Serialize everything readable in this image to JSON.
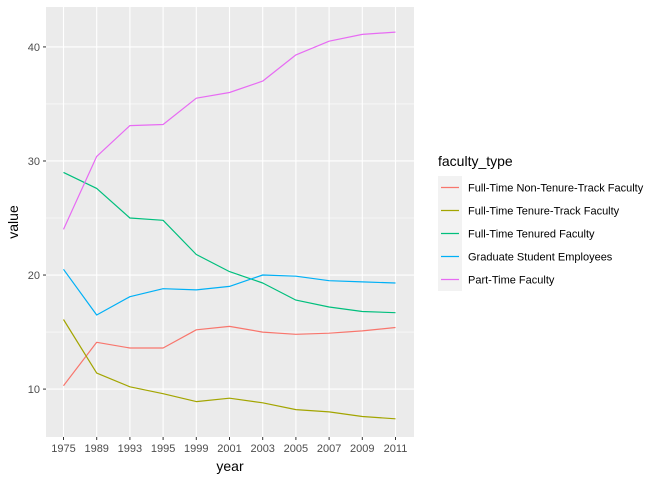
{
  "chart_data": {
    "type": "line",
    "xlabel": "year",
    "ylabel": "value",
    "x_ticks": [
      1975,
      1989,
      1993,
      1995,
      1999,
      2001,
      2003,
      2005,
      2007,
      2009,
      2011
    ],
    "y_ticks": [
      10,
      20,
      30,
      40
    ],
    "ylim": [
      5.8,
      43.5
    ],
    "grid": true,
    "legend": {
      "title": "faculty_type",
      "placement": "right"
    },
    "series": [
      {
        "name": "Full-Time Non-Tenure-Track Faculty",
        "color": "#F8766D",
        "values": [
          10.3,
          14.1,
          13.6,
          13.6,
          15.2,
          15.5,
          15.0,
          14.8,
          14.9,
          15.1,
          15.4
        ]
      },
      {
        "name": "Full-Time Tenure-Track Faculty",
        "color": "#A3A500",
        "values": [
          16.1,
          11.4,
          10.2,
          9.6,
          8.9,
          9.2,
          8.8,
          8.2,
          8.0,
          7.6,
          7.4
        ]
      },
      {
        "name": "Full-Time Tenured Faculty",
        "color": "#00BF7D",
        "values": [
          29.0,
          27.6,
          25.0,
          24.8,
          21.8,
          20.3,
          19.3,
          17.8,
          17.2,
          16.8,
          16.7
        ]
      },
      {
        "name": "Graduate Student Employees",
        "color": "#00B0F6",
        "values": [
          20.5,
          16.5,
          18.1,
          18.8,
          18.7,
          19.0,
          20.0,
          19.9,
          19.5,
          19.4,
          19.3
        ]
      },
      {
        "name": "Part-Time Faculty",
        "color": "#E76BF3",
        "values": [
          24.0,
          30.4,
          33.1,
          33.2,
          35.5,
          36.0,
          37.0,
          39.3,
          40.5,
          41.1,
          41.3
        ]
      }
    ]
  }
}
